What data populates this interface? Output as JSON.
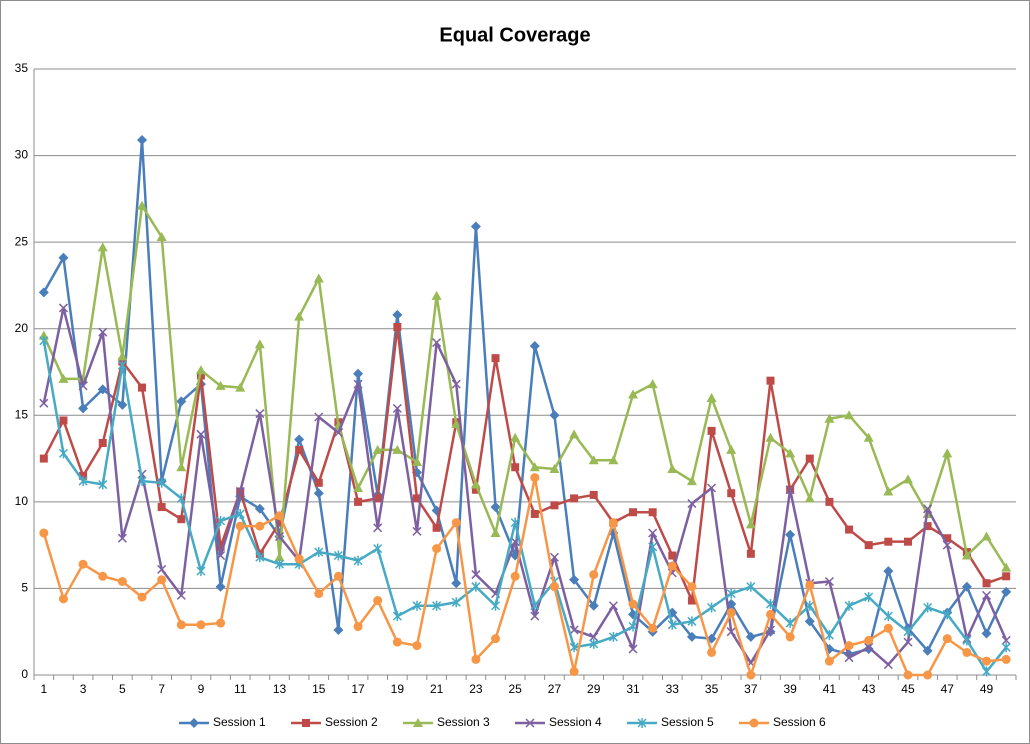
{
  "chart_data": {
    "type": "line",
    "title": "Equal Coverage",
    "categories": [
      1,
      null,
      3,
      null,
      5,
      null,
      7,
      null,
      9,
      null,
      11,
      null,
      13,
      null,
      15,
      null,
      17,
      null,
      19,
      null,
      21,
      null,
      23,
      null,
      25,
      null,
      27,
      null,
      29,
      null,
      31,
      null,
      33,
      null,
      35,
      null,
      37,
      null,
      39,
      null,
      41,
      null,
      43,
      null,
      45,
      null,
      47,
      null,
      49,
      null
    ],
    "ylim": [
      0,
      35
    ],
    "yticks": [
      0,
      5,
      10,
      15,
      20,
      25,
      30,
      35
    ],
    "grid": true,
    "legend": "bottom",
    "series": [
      {
        "name": "Session 1",
        "color": "#4a7ebb",
        "marker": "diamond",
        "values": [
          22.1,
          24.1,
          15.4,
          16.5,
          15.6,
          30.9,
          11.2,
          15.8,
          16.8,
          5.1,
          10.3,
          9.6,
          8.0,
          13.6,
          10.5,
          2.6,
          17.4,
          10.4,
          20.8,
          11.7,
          9.5,
          5.3,
          25.9,
          9.7,
          6.9,
          19.0,
          15.0,
          5.5,
          4.0,
          8.2,
          3.5,
          2.5,
          3.6,
          2.2,
          2.1,
          4.1,
          2.2,
          2.5,
          8.1,
          3.1,
          1.5,
          1.2,
          1.5,
          6.0,
          2.7,
          1.4,
          3.6,
          5.1,
          2.4,
          4.8
        ]
      },
      {
        "name": "Session 2",
        "color": "#be4b48",
        "marker": "square",
        "values": [
          12.5,
          14.7,
          11.5,
          13.4,
          18.1,
          16.6,
          9.7,
          9.0,
          17.3,
          7.4,
          10.6,
          7.0,
          8.8,
          13.0,
          11.1,
          14.6,
          10.0,
          10.2,
          20.1,
          10.2,
          8.5,
          14.6,
          10.7,
          18.3,
          12.0,
          9.3,
          9.8,
          10.2,
          10.4,
          8.8,
          9.4,
          9.4,
          6.9,
          4.3,
          14.1,
          10.5,
          7.0,
          17.0,
          10.7,
          12.5,
          10.0,
          8.4,
          7.5,
          7.7,
          7.7,
          8.6,
          7.9,
          7.1,
          5.3,
          5.7
        ]
      },
      {
        "name": "Session 3",
        "color": "#98b954",
        "marker": "triangle",
        "values": [
          19.6,
          17.1,
          17.1,
          24.7,
          18.4,
          27.1,
          25.3,
          12.0,
          17.6,
          16.7,
          16.6,
          19.1,
          6.8,
          20.7,
          22.9,
          14.4,
          10.8,
          13.0,
          13.0,
          12.3,
          21.9,
          14.5,
          11.0,
          8.2,
          13.7,
          12.0,
          11.9,
          13.9,
          12.4,
          12.4,
          16.2,
          16.8,
          11.9,
          11.2,
          16.0,
          13.0,
          8.7,
          13.7,
          12.8,
          10.2,
          14.8,
          15.0,
          13.7,
          10.6,
          11.3,
          9.3,
          12.8,
          6.9,
          8.0,
          6.2
        ]
      },
      {
        "name": "Session 4",
        "color": "#7d60a0",
        "marker": "x",
        "values": [
          15.7,
          21.2,
          16.7,
          19.8,
          7.9,
          11.6,
          6.1,
          4.6,
          13.9,
          6.9,
          10.6,
          15.1,
          8.0,
          6.6,
          14.9,
          14.0,
          16.8,
          8.5,
          15.4,
          8.3,
          19.2,
          16.8,
          5.8,
          4.7,
          7.7,
          3.4,
          6.8,
          2.6,
          2.2,
          4.0,
          1.5,
          8.2,
          5.9,
          9.9,
          10.8,
          2.5,
          0.7,
          2.6,
          10.7,
          5.3,
          5.4,
          1.0,
          1.6,
          0.6,
          1.9,
          9.6,
          7.5,
          2.1,
          4.6,
          2.0
        ]
      },
      {
        "name": "Session 5",
        "color": "#46aac5",
        "marker": "star",
        "values": [
          19.3,
          12.8,
          11.2,
          11.0,
          17.9,
          11.2,
          11.1,
          10.2,
          6.0,
          8.9,
          9.3,
          6.8,
          6.4,
          6.4,
          7.1,
          6.9,
          6.6,
          7.3,
          3.4,
          4.0,
          4.0,
          4.2,
          5.1,
          4.0,
          8.8,
          4.0,
          5.4,
          1.6,
          1.8,
          2.2,
          2.8,
          7.4,
          2.9,
          3.1,
          3.9,
          4.7,
          5.1,
          4.1,
          3.0,
          4.0,
          2.3,
          4.0,
          4.5,
          3.4,
          2.5,
          3.9,
          3.5,
          2.0,
          0.2,
          1.6
        ]
      },
      {
        "name": "Session 6",
        "color": "#f79646",
        "marker": "circle",
        "values": [
          8.2,
          4.4,
          6.4,
          5.7,
          5.4,
          4.5,
          5.5,
          2.9,
          2.9,
          3.0,
          8.6,
          8.6,
          9.2,
          6.7,
          4.7,
          5.7,
          2.8,
          4.3,
          1.9,
          1.7,
          7.3,
          8.8,
          0.9,
          2.1,
          5.7,
          11.4,
          5.1,
          0.2,
          5.8,
          8.8,
          4.1,
          2.7,
          6.3,
          5.1,
          1.3,
          3.6,
          0.0,
          3.5,
          2.2,
          5.2,
          0.8,
          1.7,
          2.0,
          2.7,
          0.0,
          0.0,
          2.1,
          1.3,
          0.8,
          0.9
        ]
      }
    ]
  }
}
